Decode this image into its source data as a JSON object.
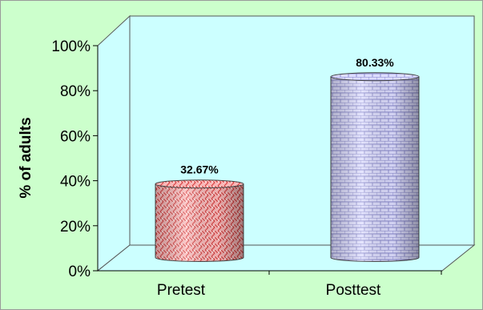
{
  "chart_data": {
    "type": "bar",
    "style": "3d-cylinder",
    "categories": [
      "Pretest",
      "Posttest"
    ],
    "values": [
      32.67,
      80.33
    ],
    "data_labels": [
      "32.67%",
      "80.33%"
    ],
    "ylabel": "% of adults",
    "xlabel": "",
    "title": "",
    "ylim": [
      0,
      100
    ],
    "yticks": [
      0,
      20,
      40,
      60,
      80,
      100
    ],
    "ytick_labels": [
      "0%",
      "20%",
      "40%",
      "60%",
      "80%",
      "100%"
    ],
    "grid": false,
    "legend": "none",
    "series_colors": [
      "#ff9999",
      "#ccccff"
    ],
    "colors": {
      "chart_area": "#ccffcc",
      "plot_area": "#ccffff",
      "pretest_fill": "#ff9999",
      "posttest_fill": "#ccccff"
    }
  }
}
